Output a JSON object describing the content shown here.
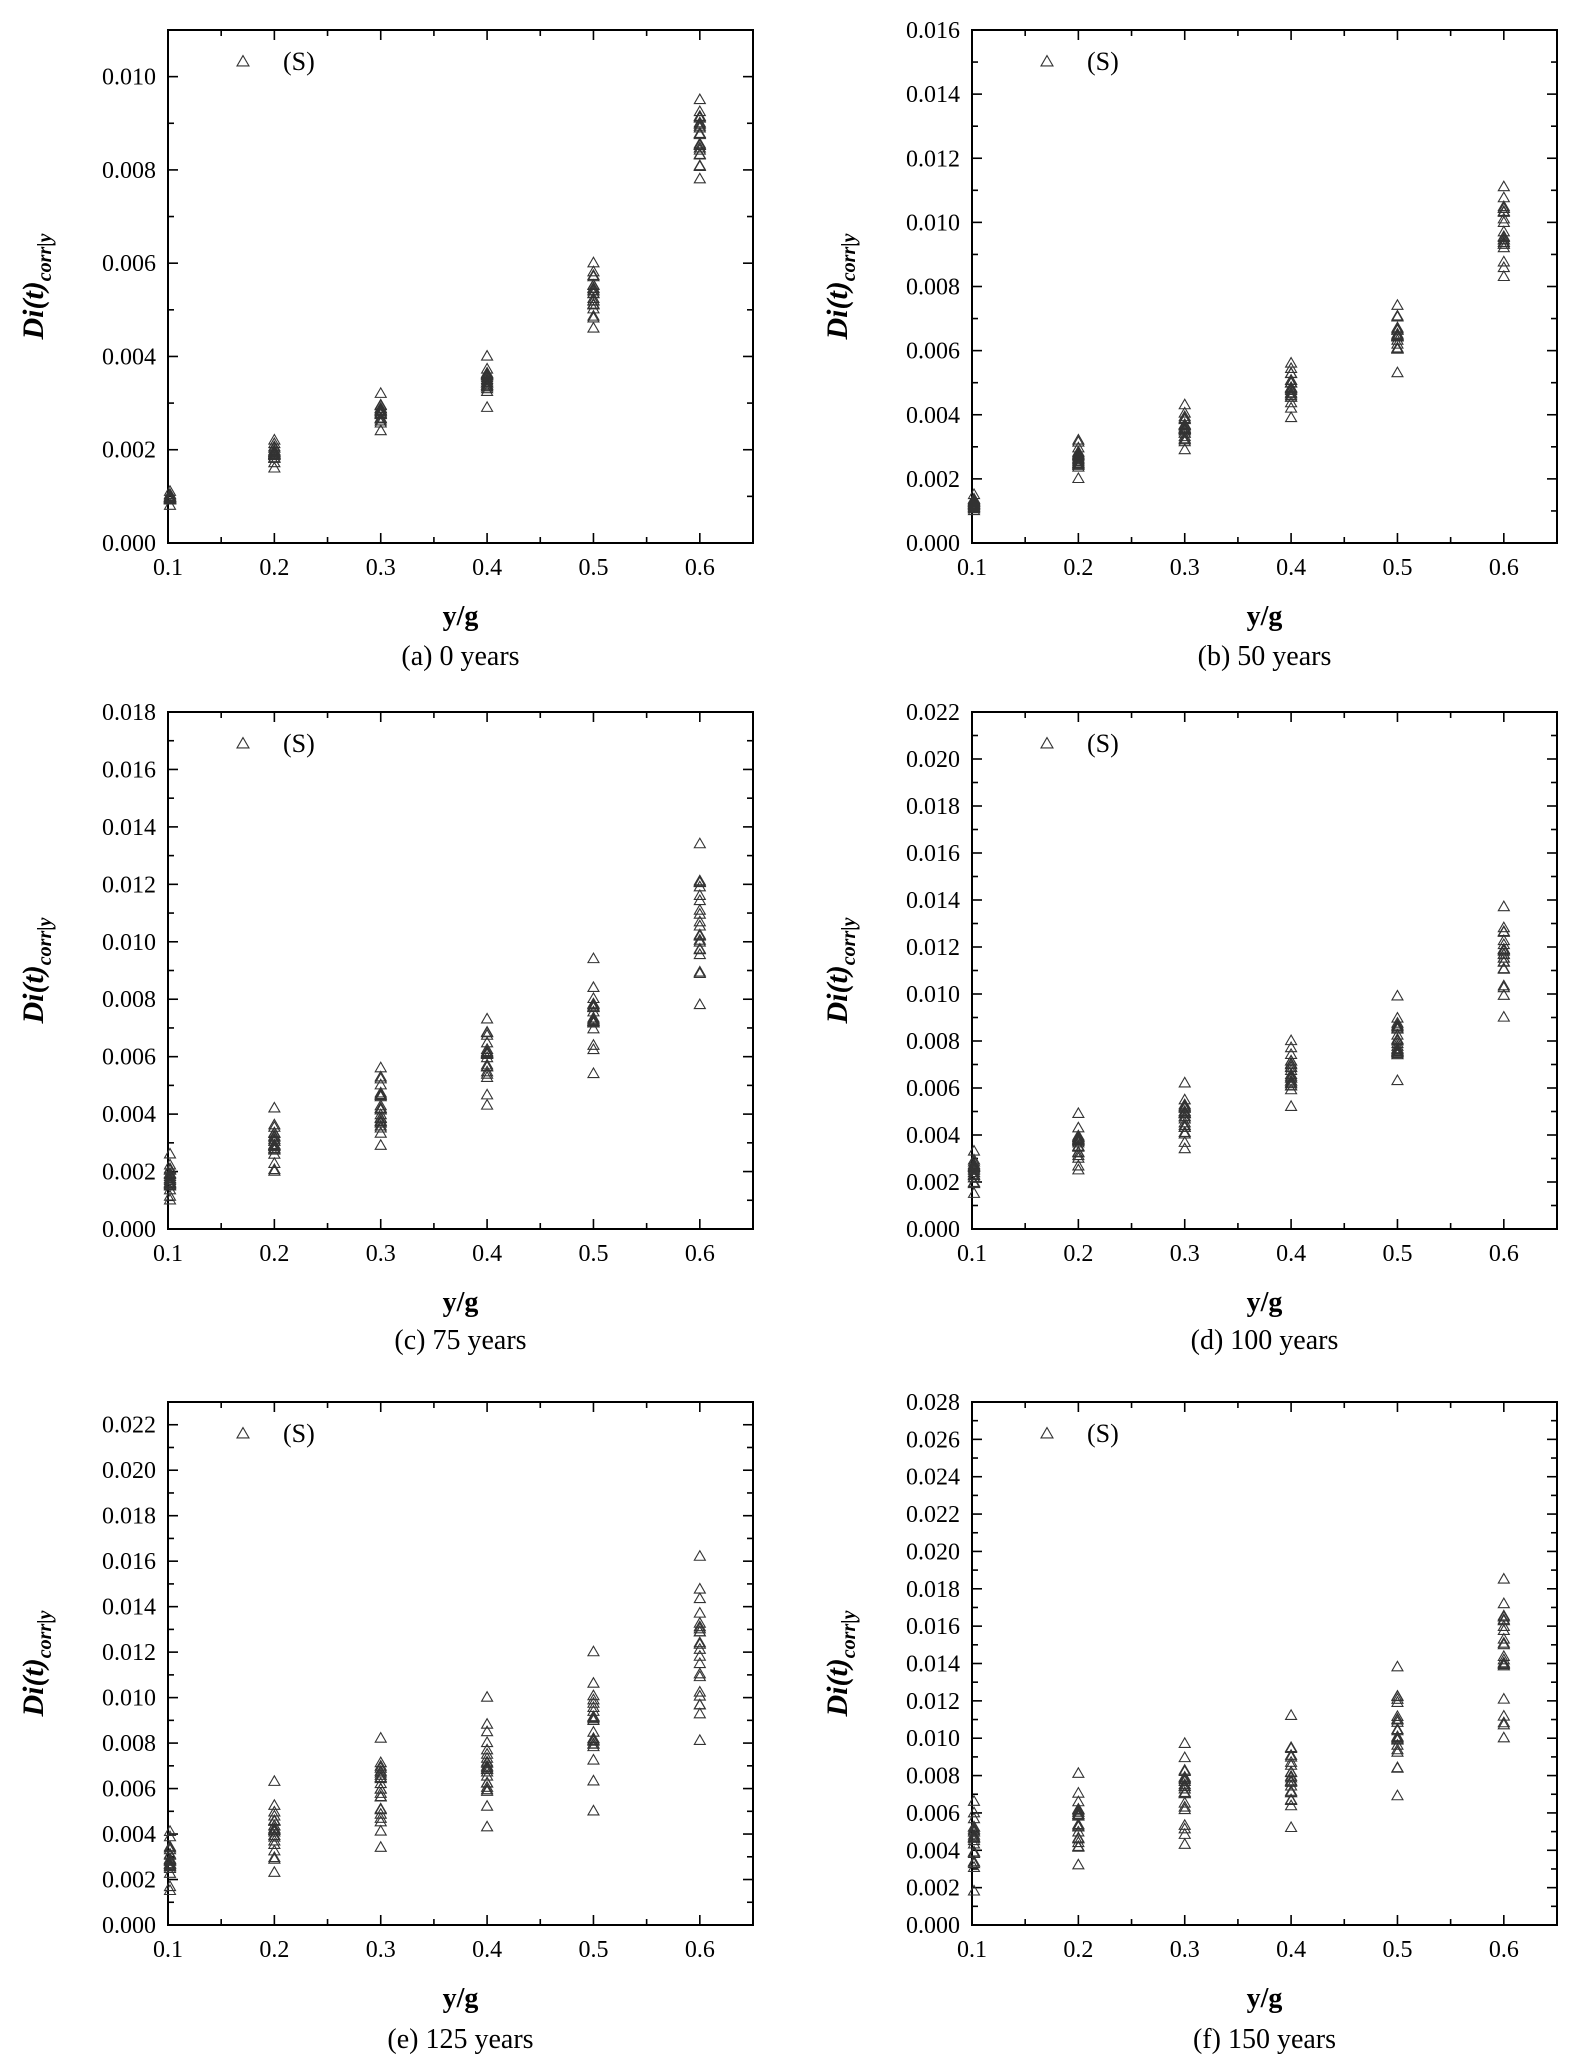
{
  "chart_data": [
    {
      "type": "scatter",
      "caption": "(a) 0 years",
      "xlabel": "y/g",
      "ylabel_main": "Di(t)",
      "ylabel_sub": "corr|y",
      "legend": "(S)",
      "marker": "triangle-open",
      "xlim": [
        0.1,
        0.65
      ],
      "ylim": [
        0,
        0.011
      ],
      "xticks": [
        0.1,
        0.2,
        0.3,
        0.4,
        0.5,
        0.6
      ],
      "xtick_labels": [
        "0.1",
        "0.2",
        "0.3",
        "0.4",
        "0.5",
        "0.6"
      ],
      "yticks": [
        0,
        0.002,
        0.004,
        0.006,
        0.008,
        0.01
      ],
      "ytick_labels": [
        "0.000",
        "0.002",
        "0.004",
        "0.006",
        "0.008",
        "0.010"
      ],
      "series": [
        {
          "x": 0.1,
          "min": 0.0008,
          "max": 0.0011
        },
        {
          "x": 0.2,
          "min": 0.0016,
          "max": 0.0022
        },
        {
          "x": 0.3,
          "min": 0.0024,
          "max": 0.0032
        },
        {
          "x": 0.4,
          "min": 0.0029,
          "max": 0.004
        },
        {
          "x": 0.5,
          "min": 0.0046,
          "max": 0.006
        },
        {
          "x": 0.6,
          "min": 0.0078,
          "max": 0.0095
        }
      ]
    },
    {
      "type": "scatter",
      "caption": "(b) 50 years",
      "xlabel": "y/g",
      "ylabel_main": "Di(t)",
      "ylabel_sub": "corr|y",
      "legend": "(S)",
      "marker": "triangle-open",
      "xlim": [
        0.1,
        0.65
      ],
      "ylim": [
        0,
        0.016
      ],
      "xticks": [
        0.1,
        0.2,
        0.3,
        0.4,
        0.5,
        0.6
      ],
      "xtick_labels": [
        "0.1",
        "0.2",
        "0.3",
        "0.4",
        "0.5",
        "0.6"
      ],
      "yticks": [
        0,
        0.002,
        0.004,
        0.006,
        0.008,
        0.01,
        0.012,
        0.014,
        0.016
      ],
      "ytick_labels": [
        "0.000",
        "0.002",
        "0.004",
        "0.006",
        "0.008",
        "0.010",
        "0.012",
        "0.014",
        "0.016"
      ],
      "series": [
        {
          "x": 0.1,
          "min": 0.001,
          "max": 0.0015
        },
        {
          "x": 0.2,
          "min": 0.002,
          "max": 0.0032
        },
        {
          "x": 0.3,
          "min": 0.0029,
          "max": 0.0043
        },
        {
          "x": 0.4,
          "min": 0.0039,
          "max": 0.0056
        },
        {
          "x": 0.5,
          "min": 0.0053,
          "max": 0.0074
        },
        {
          "x": 0.6,
          "min": 0.0083,
          "max": 0.0111
        }
      ]
    },
    {
      "type": "scatter",
      "caption": "(c) 75 years",
      "xlabel": "y/g",
      "ylabel_main": "Di(t)",
      "ylabel_sub": "corr|y",
      "legend": "(S)",
      "marker": "triangle-open",
      "xlim": [
        0.1,
        0.65
      ],
      "ylim": [
        0,
        0.018
      ],
      "xticks": [
        0.1,
        0.2,
        0.3,
        0.4,
        0.5,
        0.6
      ],
      "xtick_labels": [
        "0.1",
        "0.2",
        "0.3",
        "0.4",
        "0.5",
        "0.6"
      ],
      "yticks": [
        0,
        0.002,
        0.004,
        0.006,
        0.008,
        0.01,
        0.012,
        0.014,
        0.016,
        0.018
      ],
      "ytick_labels": [
        "0.000",
        "0.002",
        "0.004",
        "0.006",
        "0.008",
        "0.010",
        "0.012",
        "0.014",
        "0.016",
        "0.018"
      ],
      "series": [
        {
          "x": 0.1,
          "min": 0.001,
          "max": 0.0026
        },
        {
          "x": 0.2,
          "min": 0.002,
          "max": 0.0042
        },
        {
          "x": 0.3,
          "min": 0.0029,
          "max": 0.0056
        },
        {
          "x": 0.4,
          "min": 0.0043,
          "max": 0.0073
        },
        {
          "x": 0.5,
          "min": 0.0054,
          "max": 0.0094
        },
        {
          "x": 0.6,
          "min": 0.0078,
          "max": 0.0134
        }
      ]
    },
    {
      "type": "scatter",
      "caption": "(d) 100 years",
      "xlabel": "y/g",
      "ylabel_main": "Di(t)",
      "ylabel_sub": "corr|y",
      "legend": "(S)",
      "marker": "triangle-open",
      "xlim": [
        0.1,
        0.65
      ],
      "ylim": [
        0,
        0.022
      ],
      "xticks": [
        0.1,
        0.2,
        0.3,
        0.4,
        0.5,
        0.6
      ],
      "xtick_labels": [
        "0.1",
        "0.2",
        "0.3",
        "0.4",
        "0.5",
        "0.6"
      ],
      "yticks": [
        0,
        0.002,
        0.004,
        0.006,
        0.008,
        0.01,
        0.012,
        0.014,
        0.016,
        0.018,
        0.02,
        0.022
      ],
      "ytick_labels": [
        "0.000",
        "0.002",
        "0.004",
        "0.006",
        "0.008",
        "0.010",
        "0.012",
        "0.014",
        "0.016",
        "0.018",
        "0.020",
        "0.022"
      ],
      "series": [
        {
          "x": 0.1,
          "min": 0.0015,
          "max": 0.0033
        },
        {
          "x": 0.2,
          "min": 0.0025,
          "max": 0.0049
        },
        {
          "x": 0.3,
          "min": 0.0034,
          "max": 0.0062
        },
        {
          "x": 0.4,
          "min": 0.0052,
          "max": 0.008
        },
        {
          "x": 0.5,
          "min": 0.0063,
          "max": 0.0099
        },
        {
          "x": 0.6,
          "min": 0.009,
          "max": 0.0137
        }
      ]
    },
    {
      "type": "scatter",
      "caption": "(e) 125 years",
      "xlabel": "y/g",
      "ylabel_main": "Di(t)",
      "ylabel_sub": "corr|y",
      "legend": "(S)",
      "marker": "triangle-open",
      "xlim": [
        0.1,
        0.65
      ],
      "ylim": [
        0,
        0.023
      ],
      "xticks": [
        0.1,
        0.2,
        0.3,
        0.4,
        0.5,
        0.6
      ],
      "xtick_labels": [
        "0.1",
        "0.2",
        "0.3",
        "0.4",
        "0.5",
        "0.6"
      ],
      "yticks": [
        0,
        0.002,
        0.004,
        0.006,
        0.008,
        0.01,
        0.012,
        0.014,
        0.016,
        0.018,
        0.02,
        0.022
      ],
      "ytick_labels": [
        "0.000",
        "0.002",
        "0.004",
        "0.006",
        "0.008",
        "0.010",
        "0.012",
        "0.014",
        "0.016",
        "0.018",
        "0.020",
        "0.022"
      ],
      "series": [
        {
          "x": 0.1,
          "min": 0.0015,
          "max": 0.0041
        },
        {
          "x": 0.2,
          "min": 0.0023,
          "max": 0.0063
        },
        {
          "x": 0.3,
          "min": 0.0034,
          "max": 0.0082
        },
        {
          "x": 0.4,
          "min": 0.0043,
          "max": 0.01
        },
        {
          "x": 0.5,
          "min": 0.005,
          "max": 0.012
        },
        {
          "x": 0.6,
          "min": 0.0081,
          "max": 0.0162
        }
      ]
    },
    {
      "type": "scatter",
      "caption": "(f) 150 years",
      "xlabel": "y/g",
      "ylabel_main": "Di(t)",
      "ylabel_sub": "corr|y",
      "legend": "(S)",
      "marker": "triangle-open",
      "xlim": [
        0.1,
        0.65
      ],
      "ylim": [
        0,
        0.028
      ],
      "xticks": [
        0.1,
        0.2,
        0.3,
        0.4,
        0.5,
        0.6
      ],
      "xtick_labels": [
        "0.1",
        "0.2",
        "0.3",
        "0.4",
        "0.5",
        "0.6"
      ],
      "yticks": [
        0,
        0.002,
        0.004,
        0.006,
        0.008,
        0.01,
        0.012,
        0.014,
        0.016,
        0.018,
        0.02,
        0.022,
        0.024,
        0.026,
        0.028
      ],
      "ytick_labels": [
        "0.000",
        "0.002",
        "0.004",
        "0.006",
        "0.008",
        "0.010",
        "0.012",
        "0.014",
        "0.016",
        "0.018",
        "0.020",
        "0.022",
        "0.024",
        "0.026",
        "0.028"
      ],
      "series": [
        {
          "x": 0.1,
          "min": 0.0018,
          "max": 0.0066
        },
        {
          "x": 0.2,
          "min": 0.0032,
          "max": 0.0081
        },
        {
          "x": 0.3,
          "min": 0.0043,
          "max": 0.0097
        },
        {
          "x": 0.4,
          "min": 0.0052,
          "max": 0.0112
        },
        {
          "x": 0.5,
          "min": 0.0069,
          "max": 0.0138
        },
        {
          "x": 0.6,
          "min": 0.01,
          "max": 0.0185
        }
      ]
    }
  ]
}
